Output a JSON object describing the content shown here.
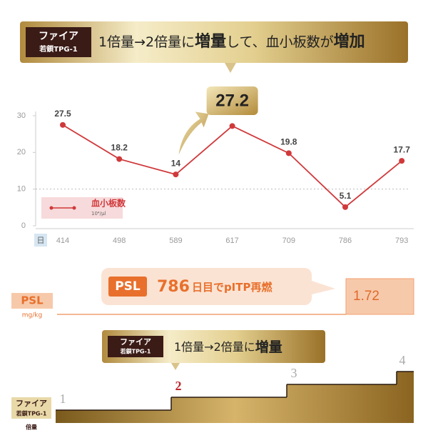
{
  "banner": {
    "drug": "ファイア",
    "drug_sub": "若鎖TPG-1",
    "text_parts": [
      "1倍量→2倍量に",
      "増量",
      "して、血小板数が",
      "増加"
    ]
  },
  "chart_data": {
    "type": "line",
    "x_axis_label": "日",
    "categories": [
      "414",
      "498",
      "589",
      "617",
      "709",
      "786",
      "793"
    ],
    "series": [
      {
        "name": "血小板数",
        "unit": "10⁴/μl",
        "color": "#d0393b",
        "values": [
          27.5,
          18.2,
          14,
          27.2,
          19.8,
          5.1,
          17.7
        ],
        "value_labels": [
          "27.5",
          "18.2",
          "14",
          "27.2",
          "19.8",
          "5.1",
          "17.7"
        ]
      }
    ],
    "ylim": [
      0,
      30
    ],
    "yticks": [
      0,
      10,
      20,
      30
    ],
    "reference_line": 10
  },
  "psl": {
    "label": "PSL",
    "unit": "mg/kg",
    "callout_tag": "PSL",
    "callout_day": "786",
    "callout_text": "日目でpITP再燃",
    "value": 1.72
  },
  "dose": {
    "drug": "ファイア",
    "drug_sub": "若鎖TPG-1",
    "axis_label": "倍量",
    "callout_drug": "ファイア",
    "callout_drug_sub": "若鎖TPG-1",
    "callout_parts": [
      "1倍量→2倍量に",
      "増量"
    ],
    "steps": [
      1,
      2,
      3,
      4
    ]
  }
}
